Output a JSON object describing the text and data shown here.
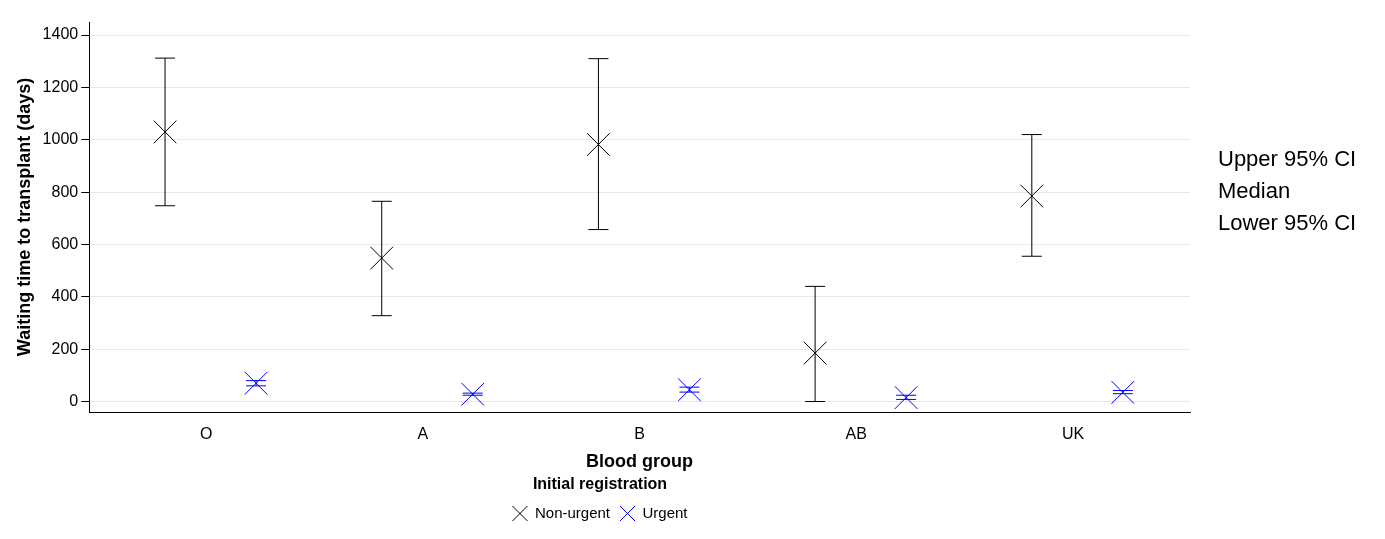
{
  "chart_data": {
    "type": "scatter",
    "xlabel": "Blood group",
    "ylabel": "Waiting time to transplant (days)",
    "legend_title": "Initial registration",
    "categories": [
      "O",
      "A",
      "B",
      "AB",
      "UK"
    ],
    "series": [
      {
        "name": "Non-urgent",
        "color": "#000000",
        "values": [
          1030,
          548,
          982,
          185,
          785
        ],
        "errors": [
          [
            748,
            1312
          ],
          [
            328,
            765
          ],
          [
            657,
            1310
          ],
          [
            0,
            440
          ],
          [
            555,
            1020
          ]
        ]
      },
      {
        "name": "Urgent",
        "color": "#0000ff",
        "values": [
          70,
          28,
          45,
          15,
          35
        ],
        "errors": [
          [
            60,
            80
          ],
          [
            24,
            32
          ],
          [
            36,
            55
          ],
          [
            8,
            24
          ],
          [
            30,
            42
          ]
        ]
      }
    ],
    "ylim": [
      -40,
      1450
    ],
    "yticks": [
      0,
      200,
      400,
      600,
      800,
      1000,
      1200,
      1400
    ],
    "grid": "y",
    "marker": "cross",
    "legend": "bottom",
    "annotations": [
      "Upper 95% CI",
      "Median",
      "Lower 95% CI"
    ]
  }
}
